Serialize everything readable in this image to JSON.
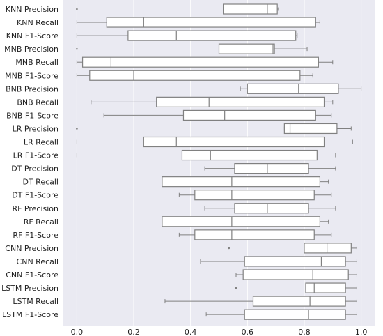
{
  "chart_data": {
    "type": "box",
    "orientation": "horizontal",
    "xlim": [
      -0.05,
      1.05
    ],
    "x_ticks": [
      0.0,
      0.2,
      0.4,
      0.6,
      0.8,
      1.0
    ],
    "x_tick_labels": [
      "0.0",
      "0.2",
      "0.4",
      "0.6",
      "0.8",
      "1.0"
    ],
    "grid": "vertical",
    "colors": {
      "plot_bg": "#eaeaf2",
      "grid": "#ffffff",
      "box_fill": "#ffffff",
      "box_edge": "#808080",
      "median": "#808080",
      "whisker": "#808080"
    },
    "categories": [
      "KNN Precision",
      "KNN Recall",
      "KNN F1-Score",
      "MNB Precision",
      "MNB Recall",
      "MNB F1-Score",
      "BNB Precision",
      "BNB Recall",
      "BNB F1-Score",
      "LR Precision",
      "LR Recall",
      "LR F1-Score",
      "DT Precision",
      "DT Recall",
      "DT F1-Score",
      "RF Precision",
      "RF Recall",
      "RF F1-Score",
      "CNN Precision",
      "CNN Recall",
      "CNN F1-Score",
      "LSTM Precision",
      "LSTM Recall",
      "LSTM F1-Score"
    ],
    "boxes": [
      {
        "whislo": 0.515,
        "q1": 0.515,
        "med": 0.67,
        "q3": 0.705,
        "whishi": 0.71,
        "fliers": [
          0.0
        ]
      },
      {
        "whislo": 0.0,
        "q1": 0.105,
        "med": 0.235,
        "q3": 0.84,
        "whishi": 0.855,
        "fliers": []
      },
      {
        "whislo": 0.0,
        "q1": 0.18,
        "med": 0.35,
        "q3": 0.77,
        "whishi": 0.775,
        "fliers": []
      },
      {
        "whislo": 0.5,
        "q1": 0.5,
        "med": 0.69,
        "q3": 0.695,
        "whishi": 0.81,
        "fliers": [
          0.0
        ]
      },
      {
        "whislo": 0.0,
        "q1": 0.02,
        "med": 0.12,
        "q3": 0.85,
        "whishi": 0.9,
        "fliers": []
      },
      {
        "whislo": 0.0,
        "q1": 0.045,
        "med": 0.2,
        "q3": 0.785,
        "whishi": 0.83,
        "fliers": []
      },
      {
        "whislo": 0.575,
        "q1": 0.6,
        "med": 0.78,
        "q3": 0.92,
        "whishi": 1.0,
        "fliers": []
      },
      {
        "whislo": 0.05,
        "q1": 0.28,
        "med": 0.465,
        "q3": 0.87,
        "whishi": 0.9,
        "fliers": []
      },
      {
        "whislo": 0.095,
        "q1": 0.375,
        "med": 0.52,
        "q3": 0.84,
        "whishi": 0.895,
        "fliers": []
      },
      {
        "whislo": 0.73,
        "q1": 0.73,
        "med": 0.75,
        "q3": 0.915,
        "whishi": 0.965,
        "fliers": [
          0.0
        ]
      },
      {
        "whislo": 0.0,
        "q1": 0.235,
        "med": 0.35,
        "q3": 0.87,
        "whishi": 0.97,
        "fliers": []
      },
      {
        "whislo": 0.0,
        "q1": 0.37,
        "med": 0.47,
        "q3": 0.845,
        "whishi": 0.91,
        "fliers": []
      },
      {
        "whislo": 0.45,
        "q1": 0.555,
        "med": 0.67,
        "q3": 0.815,
        "whishi": 0.91,
        "fliers": []
      },
      {
        "whislo": 0.3,
        "q1": 0.3,
        "med": 0.545,
        "q3": 0.855,
        "whishi": 0.885,
        "fliers": []
      },
      {
        "whislo": 0.36,
        "q1": 0.415,
        "med": 0.545,
        "q3": 0.835,
        "whishi": 0.895,
        "fliers": []
      },
      {
        "whislo": 0.45,
        "q1": 0.555,
        "med": 0.67,
        "q3": 0.815,
        "whishi": 0.91,
        "fliers": []
      },
      {
        "whislo": 0.3,
        "q1": 0.3,
        "med": 0.545,
        "q3": 0.855,
        "whishi": 0.885,
        "fliers": []
      },
      {
        "whislo": 0.36,
        "q1": 0.415,
        "med": 0.545,
        "q3": 0.835,
        "whishi": 0.895,
        "fliers": []
      },
      {
        "whislo": 0.8,
        "q1": 0.8,
        "med": 0.88,
        "q3": 0.965,
        "whishi": 0.985,
        "fliers": [
          0.535
        ]
      },
      {
        "whislo": 0.435,
        "q1": 0.59,
        "med": 0.86,
        "q3": 0.945,
        "whishi": 0.985,
        "fliers": []
      },
      {
        "whislo": 0.56,
        "q1": 0.585,
        "med": 0.83,
        "q3": 0.955,
        "whishi": 0.985,
        "fliers": []
      },
      {
        "whislo": 0.805,
        "q1": 0.805,
        "med": 0.835,
        "q3": 0.945,
        "whishi": 0.985,
        "fliers": [
          0.56
        ]
      },
      {
        "whislo": 0.31,
        "q1": 0.62,
        "med": 0.82,
        "q3": 0.945,
        "whishi": 0.985,
        "fliers": []
      },
      {
        "whislo": 0.455,
        "q1": 0.59,
        "med": 0.815,
        "q3": 0.945,
        "whishi": 0.985,
        "fliers": []
      }
    ]
  }
}
